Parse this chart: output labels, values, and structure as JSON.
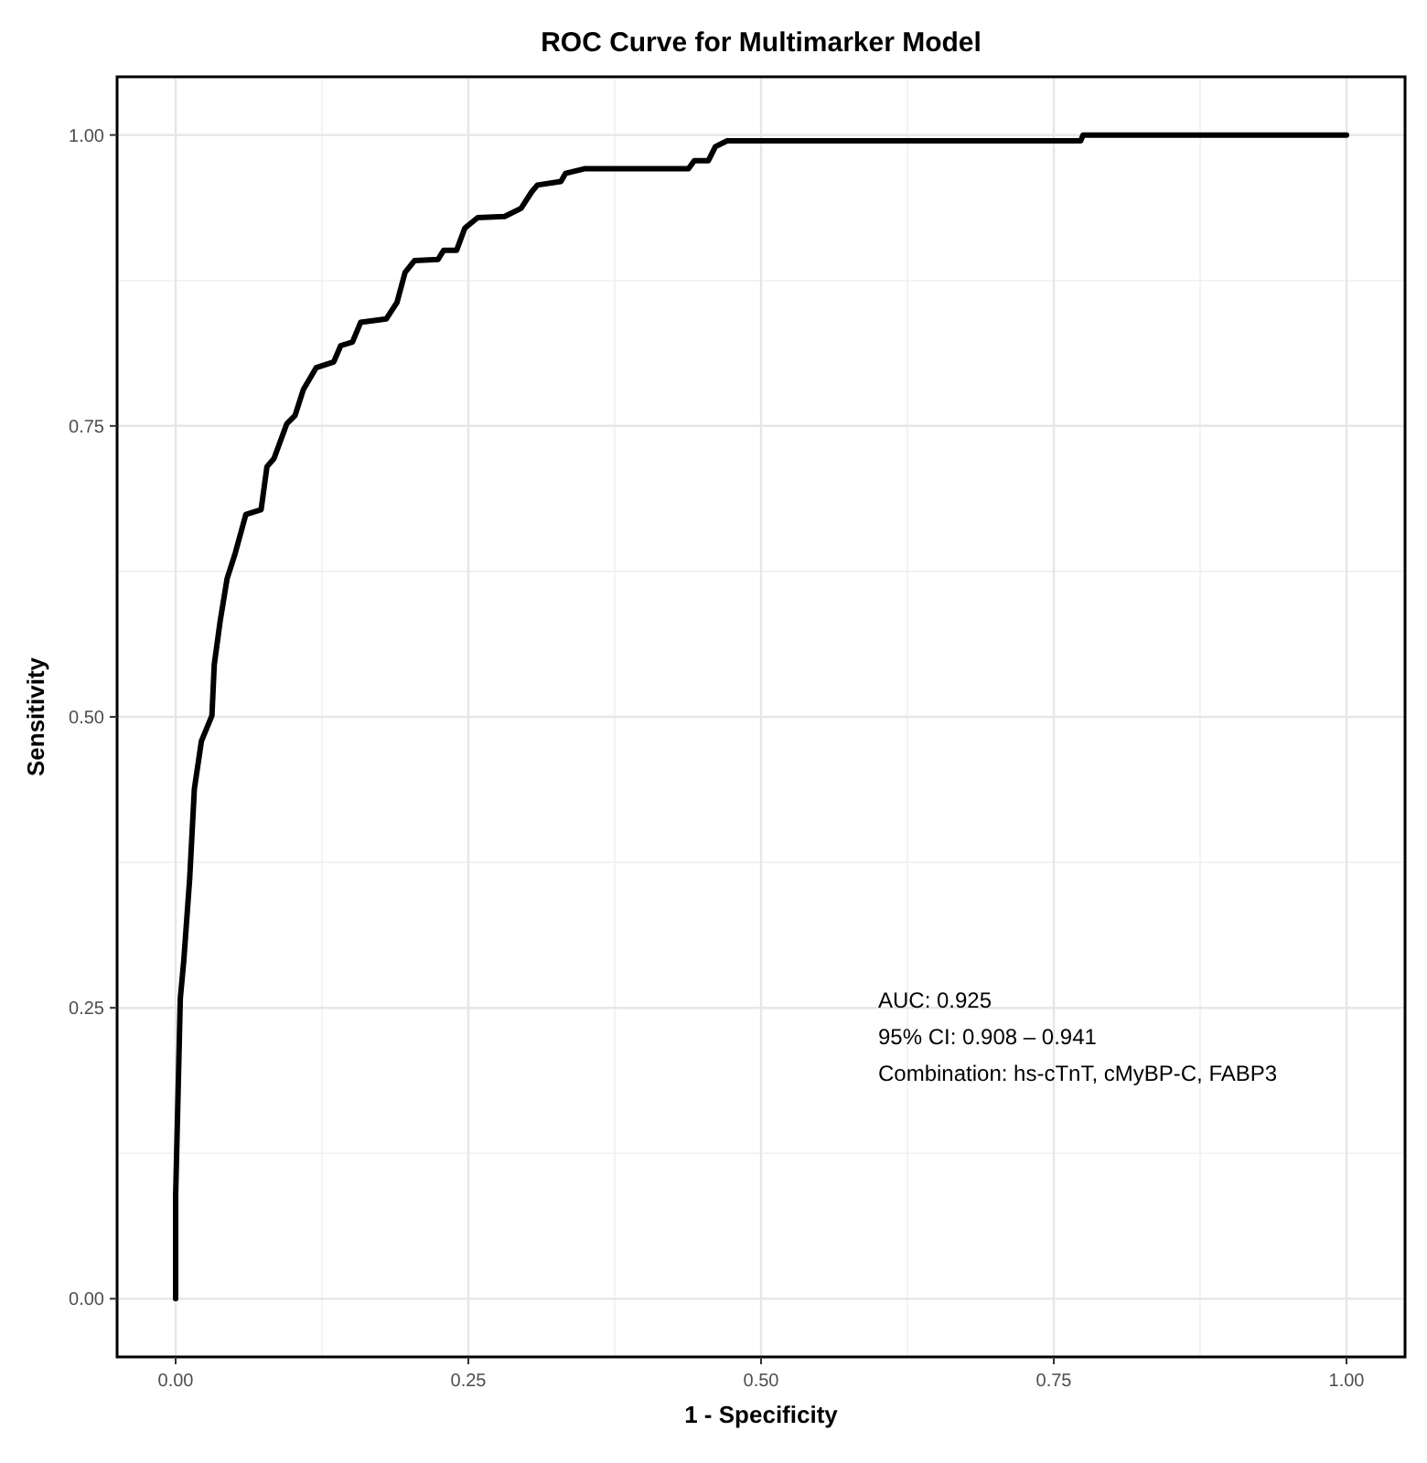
{
  "chart_data": {
    "type": "line",
    "title": "ROC Curve for Multimarker Model",
    "xlabel": "1 - Specificity",
    "ylabel": "Sensitivity",
    "series": [
      {
        "color": "#000000",
        "x": [
          0,
          0,
          0.004,
          0.007,
          0.012,
          0.016,
          0.022,
          0.031,
          0.033,
          0.038,
          0.044,
          0.051,
          0.06,
          0.073,
          0.078,
          0.084,
          0.095,
          0.102,
          0.109,
          0.12,
          0.135,
          0.141,
          0.151,
          0.158,
          0.18,
          0.189,
          0.196,
          0.204,
          0.224,
          0.229,
          0.24,
          0.247,
          0.258,
          0.281,
          0.295,
          0.304,
          0.309,
          0.329,
          0.333,
          0.349,
          0.438,
          0.443,
          0.455,
          0.461,
          0.471,
          0.773,
          0.775,
          1
        ],
        "values": [
          0,
          0.088,
          0.258,
          0.291,
          0.361,
          0.438,
          0.479,
          0.501,
          0.545,
          0.582,
          0.619,
          0.641,
          0.674,
          0.678,
          0.715,
          0.722,
          0.752,
          0.759,
          0.781,
          0.8,
          0.805,
          0.819,
          0.822,
          0.839,
          0.842,
          0.856,
          0.882,
          0.892,
          0.893,
          0.901,
          0.901,
          0.92,
          0.929,
          0.93,
          0.937,
          0.951,
          0.957,
          0.96,
          0.967,
          0.971,
          0.971,
          0.978,
          0.978,
          0.99,
          0.995,
          0.995,
          1,
          1
        ]
      }
    ],
    "xlim": [
      -0.05,
      1.05
    ],
    "ylim": [
      -0.05,
      1.05
    ],
    "xticks": [
      {
        "value": 0,
        "label": "0.00"
      },
      0.25,
      {
        "value": 0.5,
        "label": "0.50"
      },
      0.75,
      {
        "value": 1,
        "label": "1.00"
      }
    ],
    "yticks": [
      {
        "value": 0,
        "label": "0.00"
      },
      0.25,
      {
        "value": 0.5,
        "label": "0.50"
      },
      0.75,
      {
        "value": 1,
        "label": "1.00"
      }
    ],
    "grid": true,
    "line_style": "solid",
    "marker": "none",
    "annotations": [
      "AUC: 0.925",
      "95% CI: 0.908 – 0.941",
      "Combination: hs-cTnT, cMyBP-C, FABP3"
    ]
  }
}
